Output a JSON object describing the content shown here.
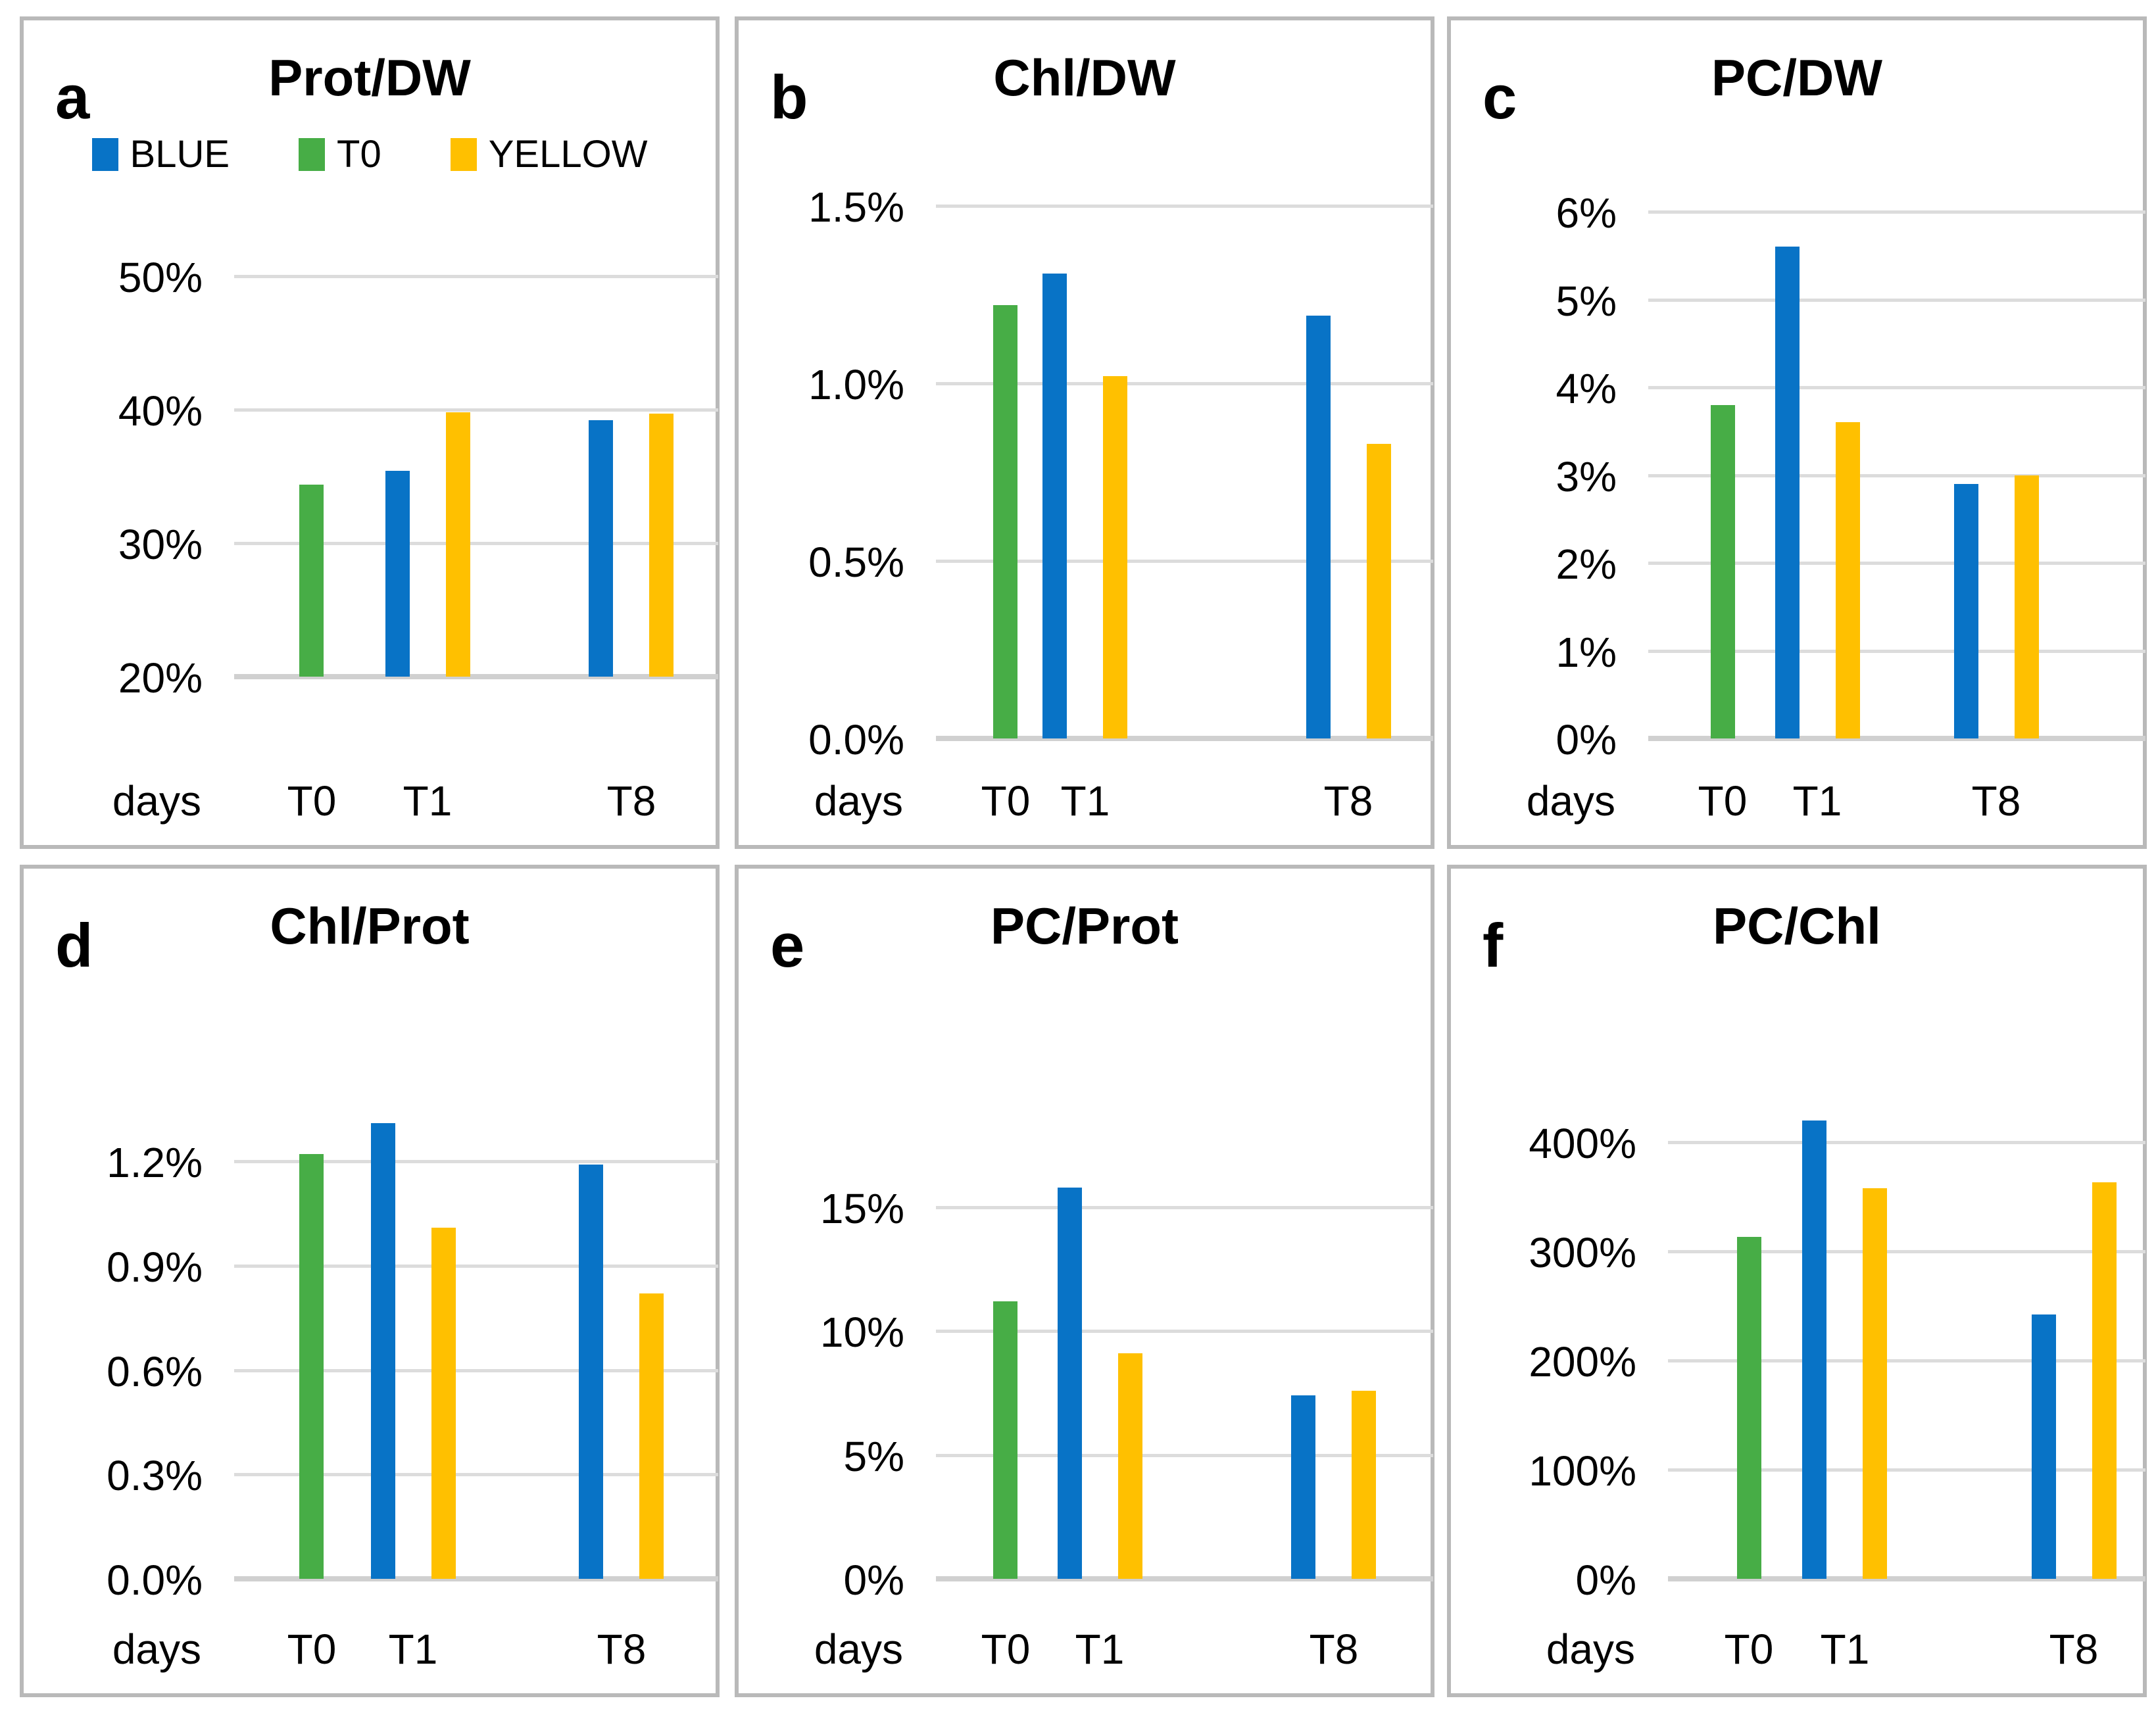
{
  "figure": {
    "x_axis_label": "days",
    "categories": [
      "T0",
      "T1",
      "T8"
    ],
    "legend": {
      "position": "top",
      "items": [
        {
          "label": "BLUE",
          "series": "blue"
        },
        {
          "label": "T0",
          "series": "green"
        },
        {
          "label": "YELLOW",
          "series": "yellow"
        }
      ]
    },
    "colors": {
      "blue": "#0873C6",
      "green": "#47AD46",
      "yellow": "#FFC000",
      "gridline": "#DCDCDC",
      "panel_border": "#B9B9B9",
      "text": "#000000"
    }
  },
  "chart_data": [
    {
      "type": "bar",
      "panel_letter": "a",
      "title": "Prot/DW",
      "xlabel": "days",
      "ylabel": "",
      "grid": true,
      "legend_position": "top",
      "ylim": [
        20,
        50
      ],
      "ytick_step": 10,
      "ytick_labels": [
        "50%",
        "40%",
        "30%",
        "20%"
      ],
      "categories": [
        "T0",
        "T1",
        "T8"
      ],
      "bars": [
        {
          "category": "T0",
          "series": "green",
          "value": 34.4
        },
        {
          "category": "T1",
          "series": "blue",
          "value": 35.4
        },
        {
          "category": "T1",
          "series": "yellow",
          "value": 39.8
        },
        {
          "category": "T8",
          "series": "blue",
          "value": 39.2
        },
        {
          "category": "T8",
          "series": "yellow",
          "value": 39.7
        }
      ]
    },
    {
      "type": "bar",
      "panel_letter": "b",
      "title": "Chl/DW",
      "xlabel": "days",
      "ylabel": "",
      "grid": true,
      "ylim": [
        0,
        1.5
      ],
      "ytick_step": 0.5,
      "ytick_labels": [
        "1.5%",
        "1.0%",
        "0.5%",
        "0.0%"
      ],
      "categories": [
        "T0",
        "T1",
        "T8"
      ],
      "bars": [
        {
          "category": "T0",
          "series": "green",
          "value": 1.22
        },
        {
          "category": "T1",
          "series": "blue",
          "value": 1.31
        },
        {
          "category": "T1",
          "series": "yellow",
          "value": 1.02
        },
        {
          "category": "T8",
          "series": "blue",
          "value": 1.19
        },
        {
          "category": "T8",
          "series": "yellow",
          "value": 0.83
        }
      ]
    },
    {
      "type": "bar",
      "panel_letter": "c",
      "title": "PC/DW",
      "xlabel": "days",
      "ylabel": "",
      "grid": true,
      "ylim": [
        0,
        6
      ],
      "ytick_step": 1,
      "ytick_labels": [
        "6%",
        "5%",
        "4%",
        "3%",
        "2%",
        "1%",
        "0%"
      ],
      "categories": [
        "T0",
        "T1",
        "T8"
      ],
      "bars": [
        {
          "category": "T0",
          "series": "green",
          "value": 3.8
        },
        {
          "category": "T1",
          "series": "blue",
          "value": 5.6
        },
        {
          "category": "T1",
          "series": "yellow",
          "value": 3.6
        },
        {
          "category": "T8",
          "series": "blue",
          "value": 2.9
        },
        {
          "category": "T8",
          "series": "yellow",
          "value": 3.0
        }
      ]
    },
    {
      "type": "bar",
      "panel_letter": "d",
      "title": "Chl/Prot",
      "xlabel": "days",
      "ylabel": "",
      "grid": true,
      "ylim": [
        0,
        1.2
      ],
      "ytick_step": 0.3,
      "ytick_labels": [
        "1.2%",
        "0.9%",
        "0.6%",
        "0.3%",
        "0.0%"
      ],
      "categories": [
        "T0",
        "T1",
        "T8"
      ],
      "bars": [
        {
          "category": "T0",
          "series": "green",
          "value": 1.22
        },
        {
          "category": "T1",
          "series": "blue",
          "value": 1.31
        },
        {
          "category": "T1",
          "series": "yellow",
          "value": 1.01
        },
        {
          "category": "T8",
          "series": "blue",
          "value": 1.19
        },
        {
          "category": "T8",
          "series": "yellow",
          "value": 0.82
        }
      ]
    },
    {
      "type": "bar",
      "panel_letter": "e",
      "title": "PC/Prot",
      "xlabel": "days",
      "ylabel": "",
      "grid": true,
      "ylim": [
        0,
        15
      ],
      "ytick_step": 5,
      "ytick_labels": [
        "15%",
        "10%",
        "5%",
        "0%"
      ],
      "categories": [
        "T0",
        "T1",
        "T8"
      ],
      "bars": [
        {
          "category": "T0",
          "series": "green",
          "value": 11.2
        },
        {
          "category": "T1",
          "series": "blue",
          "value": 15.8
        },
        {
          "category": "T1",
          "series": "yellow",
          "value": 9.1
        },
        {
          "category": "T8",
          "series": "blue",
          "value": 7.4
        },
        {
          "category": "T8",
          "series": "yellow",
          "value": 7.6
        }
      ]
    },
    {
      "type": "bar",
      "panel_letter": "f",
      "title": "PC/Chl",
      "xlabel": "days",
      "ylabel": "",
      "grid": true,
      "ylim": [
        0,
        400
      ],
      "ytick_step": 100,
      "ytick_labels": [
        "400%",
        "300%",
        "200%",
        "100%",
        "0%"
      ],
      "categories": [
        "T0",
        "T1",
        "T8"
      ],
      "bars": [
        {
          "category": "T0",
          "series": "green",
          "value": 313
        },
        {
          "category": "T1",
          "series": "blue",
          "value": 420
        },
        {
          "category": "T1",
          "series": "yellow",
          "value": 358
        },
        {
          "category": "T8",
          "series": "blue",
          "value": 242
        },
        {
          "category": "T8",
          "series": "yellow",
          "value": 363
        }
      ]
    }
  ]
}
